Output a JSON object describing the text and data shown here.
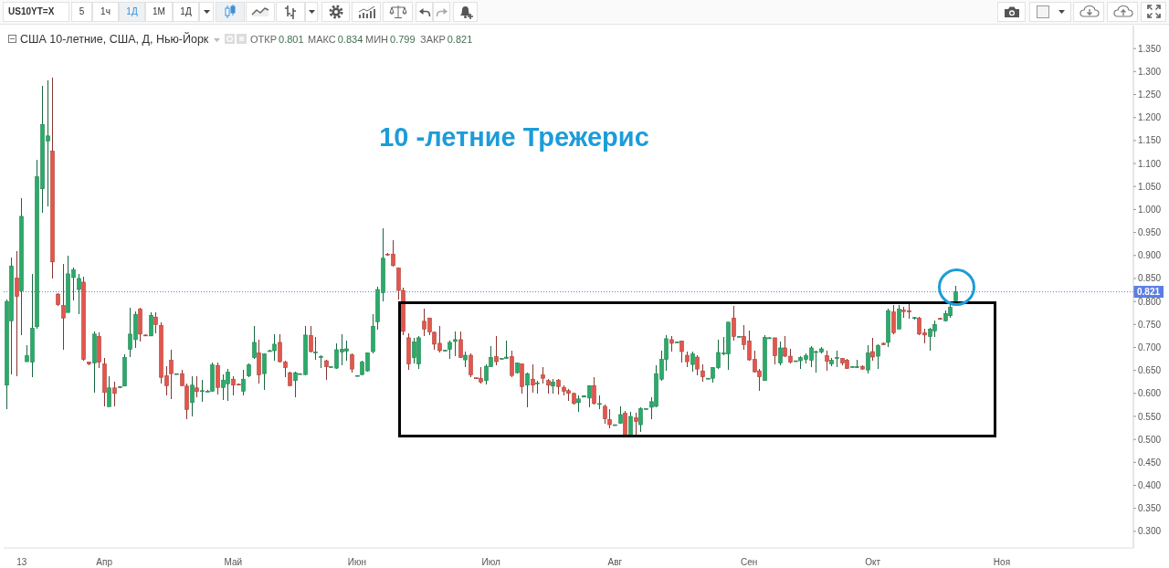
{
  "chart_data": {
    "type": "candlestick",
    "title": "США 10-летние, США, Д, Нью-Йорк",
    "annotations": [
      "US10YT=X",
      "5",
      "1ч",
      "1Д",
      "1М",
      "1Д",
      "ОТКР 0.801",
      "МАКС 0.834",
      "МИН 0.799",
      "ЗАКР 0.821",
      "10 -летние Трежерис"
    ],
    "categories": [
      null,
      null,
      null,
      "13",
      null,
      null,
      null,
      null,
      null,
      null,
      null,
      null,
      null,
      null,
      null,
      null,
      null,
      null,
      null,
      "Апр",
      null,
      null,
      null,
      null,
      null,
      null,
      null,
      null,
      null,
      null,
      null,
      null,
      null,
      null,
      null,
      null,
      null,
      null,
      null,
      null,
      null,
      null,
      null,
      null,
      "Май",
      null,
      null,
      null,
      null,
      null,
      null,
      null,
      null,
      null,
      null,
      null,
      null,
      null,
      null,
      null,
      null,
      null,
      null,
      null,
      null,
      null,
      null,
      null,
      "Июн",
      null,
      null,
      null,
      null,
      null,
      null,
      null,
      null,
      null,
      null,
      null,
      null,
      null,
      null,
      null,
      null,
      null,
      null,
      null,
      null,
      null,
      null,
      null,
      null,
      null,
      "Июл",
      null,
      null,
      null,
      null,
      null,
      null,
      null,
      null,
      null,
      null,
      null,
      null,
      null,
      null,
      null,
      null,
      null,
      null,
      null,
      null,
      null,
      null,
      null,
      "Авг",
      null,
      null,
      null,
      null,
      null,
      null,
      null,
      null,
      null,
      null,
      null,
      null,
      null,
      null,
      null,
      null,
      null,
      null,
      null,
      null,
      null,
      null,
      null,
      null,
      null,
      "Сен",
      null,
      null,
      null,
      null,
      null,
      null,
      null,
      null,
      null,
      null,
      null,
      null,
      null,
      null,
      null,
      null,
      null,
      null,
      null,
      null,
      null,
      null,
      null,
      "Окт",
      null,
      null,
      null,
      null,
      null,
      null,
      null,
      null,
      null,
      null,
      null,
      null,
      null,
      null,
      null,
      null,
      null,
      null,
      null,
      null,
      null,
      null,
      null,
      null,
      "Ноя",
      null,
      null,
      null,
      null,
      null,
      null,
      null,
      null,
      null,
      null,
      null,
      null,
      null,
      null,
      null,
      null,
      null,
      null,
      null,
      null,
      null,
      null,
      null,
      null,
      null
    ],
    "ohlc": [
      [
        0.618,
        0.804,
        0.565,
        0.8
      ],
      [
        0.758,
        0.896,
        0.641,
        0.877
      ],
      [
        0.851,
        0.91,
        0.638,
        0.811
      ],
      [
        0.823,
        1.025,
        0.727,
        0.985
      ],
      [
        0.669,
        0.704,
        0.669,
        0.682
      ],
      [
        0.668,
        0.86,
        0.635,
        0.742
      ],
      [
        0.745,
        1.108,
        0.74,
        1.071
      ],
      [
        1.045,
        1.268,
        0.992,
        1.185
      ],
      [
        1.149,
        1.28,
        1.006,
        1.16
      ],
      [
        1.127,
        1.286,
        0.85,
        0.886
      ],
      [
        0.816,
        0.818,
        0.791,
        0.793
      ],
      [
        0.791,
        0.881,
        0.694,
        0.764
      ],
      [
        0.776,
        0.899,
        0.776,
        0.86
      ],
      [
        0.852,
        0.873,
        0.803,
        0.869
      ],
      [
        0.826,
        0.86,
        0.772,
        0.85
      ],
      [
        0.842,
        0.853,
        0.671,
        0.674
      ],
      [
        0.668,
        0.67,
        0.662,
        0.664
      ],
      [
        0.666,
        0.734,
        0.602,
        0.729
      ],
      [
        0.724,
        0.732,
        0.655,
        0.668
      ],
      [
        0.664,
        0.678,
        0.572,
        0.602
      ],
      [
        0.571,
        0.638,
        0.571,
        0.612
      ],
      [
        0.612,
        0.625,
        0.571,
        0.6
      ],
      [
        0.613,
        0.616,
        0.612,
        0.615
      ],
      [
        0.616,
        0.686,
        0.616,
        0.678
      ],
      [
        0.696,
        0.787,
        0.679,
        0.729
      ],
      [
        0.717,
        0.779,
        0.698,
        0.772
      ],
      [
        0.783,
        0.787,
        0.713,
        0.729
      ],
      [
        0.727,
        0.728,
        0.724,
        0.725
      ],
      [
        0.725,
        0.777,
        0.724,
        0.77
      ],
      [
        0.766,
        0.777,
        0.731,
        0.75
      ],
      [
        0.748,
        0.754,
        0.621,
        0.635
      ],
      [
        0.638,
        0.659,
        0.595,
        0.617
      ],
      [
        0.672,
        0.694,
        0.588,
        0.643
      ],
      [
        0.643,
        0.644,
        0.642,
        0.643
      ],
      [
        0.643,
        0.651,
        0.615,
        0.617
      ],
      [
        0.616,
        0.621,
        0.545,
        0.565
      ],
      [
        0.58,
        0.638,
        0.549,
        0.618
      ],
      [
        0.612,
        0.638,
        0.592,
        0.604
      ],
      [
        0.606,
        0.63,
        0.582,
        0.606
      ],
      [
        0.605,
        0.607,
        0.603,
        0.605
      ],
      [
        0.605,
        0.668,
        0.603,
        0.662
      ],
      [
        0.661,
        0.668,
        0.598,
        0.613
      ],
      [
        0.613,
        0.641,
        0.585,
        0.629
      ],
      [
        0.621,
        0.654,
        0.583,
        0.646
      ],
      [
        0.631,
        0.638,
        0.596,
        0.618
      ],
      [
        0.62,
        0.621,
        0.618,
        0.619
      ],
      [
        0.605,
        0.651,
        0.596,
        0.631
      ],
      [
        0.638,
        0.666,
        0.636,
        0.662
      ],
      [
        0.678,
        0.746,
        0.676,
        0.711
      ],
      [
        0.688,
        0.717,
        0.621,
        0.64
      ],
      [
        0.643,
        0.688,
        0.608,
        0.686
      ],
      [
        0.692,
        0.694,
        0.691,
        0.693
      ],
      [
        0.693,
        0.729,
        0.671,
        0.707
      ],
      [
        0.711,
        0.729,
        0.668,
        0.669
      ],
      [
        0.668,
        0.671,
        0.636,
        0.656
      ],
      [
        0.645,
        0.648,
        0.616,
        0.617
      ],
      [
        0.628,
        0.648,
        0.592,
        0.645
      ],
      [
        0.643,
        0.644,
        0.642,
        0.643
      ],
      [
        0.641,
        0.746,
        0.64,
        0.727
      ],
      [
        0.726,
        0.747,
        0.689,
        0.691
      ],
      [
        0.69,
        0.722,
        0.674,
        0.69
      ],
      [
        0.68,
        0.684,
        0.656,
        0.68
      ],
      [
        0.671,
        0.674,
        0.629,
        0.658
      ],
      [
        0.658,
        0.659,
        0.657,
        0.658
      ],
      [
        0.655,
        0.709,
        0.654,
        0.695
      ],
      [
        0.69,
        0.729,
        0.662,
        0.696
      ],
      [
        0.692,
        0.715,
        0.671,
        0.697
      ],
      [
        0.684,
        0.688,
        0.645,
        0.653
      ],
      [
        0.639,
        0.64,
        0.638,
        0.639
      ],
      [
        0.641,
        0.671,
        0.64,
        0.668
      ],
      [
        0.649,
        0.69,
        0.648,
        0.688
      ],
      [
        0.691,
        0.773,
        0.688,
        0.746
      ],
      [
        0.756,
        0.832,
        0.739,
        0.826
      ],
      [
        0.819,
        0.96,
        0.8,
        0.894
      ],
      [
        0.903,
        0.905,
        0.899,
        0.901
      ],
      [
        0.903,
        0.934,
        0.876,
        0.878
      ],
      [
        0.873,
        0.873,
        0.805,
        0.824
      ],
      [
        0.824,
        0.83,
        0.727,
        0.735
      ],
      [
        0.721,
        0.731,
        0.651,
        0.664
      ],
      [
        0.678,
        0.721,
        0.666,
        0.712
      ],
      [
        0.664,
        0.724,
        0.654,
        0.721
      ],
      [
        0.757,
        0.785,
        0.724,
        0.74
      ],
      [
        0.764,
        0.764,
        0.727,
        0.734
      ],
      [
        0.733,
        0.734,
        0.694,
        0.707
      ],
      [
        0.709,
        0.747,
        0.689,
        0.693
      ],
      [
        0.694,
        0.695,
        0.693,
        0.694
      ],
      [
        0.696,
        0.714,
        0.676,
        0.711
      ],
      [
        0.713,
        0.735,
        0.681,
        0.717
      ],
      [
        0.717,
        0.734,
        0.678,
        0.678
      ],
      [
        0.673,
        0.691,
        0.658,
        0.683
      ],
      [
        0.683,
        0.688,
        0.635,
        0.64
      ],
      [
        0.634,
        0.634,
        0.632,
        0.632
      ],
      [
        0.633,
        0.658,
        0.621,
        0.625
      ],
      [
        0.628,
        0.664,
        0.62,
        0.659
      ],
      [
        0.658,
        0.702,
        0.658,
        0.678
      ],
      [
        0.68,
        0.724,
        0.661,
        0.669
      ],
      [
        0.676,
        0.677,
        0.675,
        0.676
      ],
      [
        0.676,
        0.714,
        0.676,
        0.679
      ],
      [
        0.68,
        0.692,
        0.635,
        0.639
      ],
      [
        0.645,
        0.668,
        0.643,
        0.666
      ],
      [
        0.664,
        0.666,
        0.6,
        0.615
      ],
      [
        0.618,
        0.645,
        0.57,
        0.643
      ],
      [
        0.631,
        0.664,
        0.602,
        0.618
      ],
      [
        0.623,
        0.628,
        0.6,
        0.623
      ],
      [
        0.64,
        0.658,
        0.621,
        0.633
      ],
      [
        0.628,
        0.631,
        0.6,
        0.618
      ],
      [
        0.616,
        0.631,
        0.6,
        0.625
      ],
      [
        0.629,
        0.631,
        0.598,
        0.615
      ],
      [
        0.613,
        0.618,
        0.595,
        0.605
      ],
      [
        0.606,
        0.61,
        0.583,
        0.6
      ],
      [
        0.6,
        0.602,
        0.575,
        0.578
      ],
      [
        0.58,
        0.596,
        0.559,
        0.588
      ],
      [
        0.592,
        0.596,
        0.591,
        0.595
      ],
      [
        0.59,
        0.618,
        0.57,
        0.617
      ],
      [
        0.617,
        0.636,
        0.576,
        0.578
      ],
      [
        0.578,
        0.595,
        0.565,
        0.578
      ],
      [
        0.572,
        0.575,
        0.535,
        0.545
      ],
      [
        0.543,
        0.565,
        0.524,
        0.532
      ],
      [
        0.532,
        0.533,
        0.531,
        0.532
      ],
      [
        0.535,
        0.572,
        0.534,
        0.554
      ],
      [
        0.557,
        0.562,
        0.509,
        0.51
      ],
      [
        0.509,
        0.559,
        0.506,
        0.55
      ],
      [
        0.547,
        0.557,
        0.509,
        0.539
      ],
      [
        0.532,
        0.569,
        0.516,
        0.567
      ],
      [
        0.567,
        0.568,
        0.566,
        0.567
      ],
      [
        0.57,
        0.592,
        0.545,
        0.582
      ],
      [
        0.572,
        0.661,
        0.57,
        0.643
      ],
      [
        0.631,
        0.692,
        0.628,
        0.674
      ],
      [
        0.674,
        0.727,
        0.649,
        0.719
      ],
      [
        0.717,
        0.724,
        0.691,
        0.709
      ],
      [
        0.712,
        0.713,
        0.711,
        0.712
      ],
      [
        0.714,
        0.715,
        0.668,
        0.691
      ],
      [
        0.683,
        0.691,
        0.658,
        0.669
      ],
      [
        0.663,
        0.691,
        0.647,
        0.686
      ],
      [
        0.679,
        0.684,
        0.64,
        0.653
      ],
      [
        0.649,
        0.664,
        0.625,
        0.636
      ],
      [
        0.633,
        0.634,
        0.632,
        0.633
      ],
      [
        0.633,
        0.658,
        0.623,
        0.656
      ],
      [
        0.656,
        0.717,
        0.654,
        0.689
      ],
      [
        0.688,
        0.722,
        0.684,
        0.688
      ],
      [
        0.686,
        0.755,
        0.651,
        0.755
      ],
      [
        0.764,
        0.79,
        0.715,
        0.724
      ],
      [
        0.724,
        0.725,
        0.723,
        0.724
      ],
      [
        0.724,
        0.748,
        0.694,
        0.706
      ],
      [
        0.714,
        0.737,
        0.671,
        0.673
      ],
      [
        0.674,
        0.692,
        0.645,
        0.647
      ],
      [
        0.649,
        0.654,
        0.605,
        0.636
      ],
      [
        0.628,
        0.727,
        0.627,
        0.722
      ],
      [
        0.721,
        0.722,
        0.72,
        0.721
      ],
      [
        0.721,
        0.721,
        0.664,
        0.682
      ],
      [
        0.666,
        0.713,
        0.662,
        0.699
      ],
      [
        0.699,
        0.724,
        0.68,
        0.681
      ],
      [
        0.681,
        0.697,
        0.666,
        0.668
      ],
      [
        0.671,
        0.672,
        0.67,
        0.671
      ],
      [
        0.671,
        0.681,
        0.653,
        0.678
      ],
      [
        0.674,
        0.688,
        0.666,
        0.682
      ],
      [
        0.672,
        0.702,
        0.658,
        0.699
      ],
      [
        0.691,
        0.692,
        0.646,
        0.691
      ],
      [
        0.69,
        0.701,
        0.688,
        0.697
      ],
      [
        0.682,
        0.692,
        0.65,
        0.67
      ],
      [
        0.664,
        0.677,
        0.659,
        0.672
      ],
      [
        0.678,
        0.693,
        0.658,
        0.678
      ],
      [
        0.676,
        0.678,
        0.661,
        0.666
      ],
      [
        0.672,
        0.676,
        0.653,
        0.654
      ],
      [
        0.658,
        0.659,
        0.657,
        0.658
      ],
      [
        0.658,
        0.674,
        0.656,
        0.658
      ],
      [
        0.659,
        0.661,
        0.651,
        0.653
      ],
      [
        0.651,
        0.704,
        0.643,
        0.688
      ],
      [
        0.691,
        0.721,
        0.671,
        0.679
      ],
      [
        0.681,
        0.707,
        0.654,
        0.704
      ],
      [
        0.709,
        0.71,
        0.705,
        0.706
      ],
      [
        0.711,
        0.785,
        0.701,
        0.78
      ],
      [
        0.777,
        0.793,
        0.729,
        0.732
      ],
      [
        0.74,
        0.793,
        0.74,
        0.783
      ],
      [
        0.781,
        0.789,
        0.764,
        0.778
      ],
      [
        0.78,
        0.8,
        0.762,
        0.777
      ],
      [
        0.765,
        0.767,
        0.76,
        0.765
      ],
      [
        0.764,
        0.767,
        0.727,
        0.729
      ],
      [
        0.732,
        0.74,
        0.709,
        0.727
      ],
      [
        0.724,
        0.742,
        0.692,
        0.74
      ],
      [
        0.736,
        0.758,
        0.723,
        0.75
      ],
      [
        0.763,
        0.764,
        0.761,
        0.762
      ],
      [
        0.758,
        0.78,
        0.756,
        0.774
      ],
      [
        0.769,
        0.797,
        0.765,
        0.787
      ],
      [
        0.801,
        0.834,
        0.799,
        0.821
      ],
      null,
      null,
      null,
      null,
      null,
      null,
      null,
      null,
      null,
      null,
      null,
      null,
      null,
      null,
      null,
      null,
      null,
      null,
      null,
      null,
      null,
      null,
      null,
      null,
      null,
      null,
      null,
      null,
      null,
      null,
      null,
      null,
      null,
      null
    ],
    "colors": [
      "#2aab69",
      "#2aab69",
      "#e4564c",
      "#2aab69",
      "#2aab69",
      "#2aab69",
      "#2aab69",
      "#2aab69",
      "#2aab69",
      "#e4564c",
      "#e4564c",
      "#e4564c",
      "#2aab69",
      "#2aab69",
      "#2aab69",
      "#e4564c",
      "#e4564c",
      "#2aab69",
      "#e4564c",
      "#e4564c",
      "#2aab69",
      "#e4564c",
      "#2aab69",
      "#2aab69",
      "#2aab69",
      "#2aab69",
      "#e4564c",
      "#e4564c",
      "#2aab69",
      "#e4564c",
      "#e4564c",
      "#e4564c",
      "#e4564c",
      "#2aab69",
      "#e4564c",
      "#e4564c",
      "#2aab69",
      "#e4564c",
      "#2aab69",
      "#2aab69",
      "#2aab69",
      "#e4564c",
      "#2aab69",
      "#2aab69",
      "#e4564c",
      "#e4564c",
      "#2aab69",
      "#2aab69",
      "#2aab69",
      "#e4564c",
      "#2aab69",
      "#2aab69",
      "#2aab69",
      "#e4564c",
      "#e4564c",
      "#e4564c",
      "#2aab69",
      "#2aab69",
      "#2aab69",
      "#e4564c",
      "#2aab69",
      "#2aab69",
      "#e4564c",
      "#2aab69",
      "#2aab69",
      "#2aab69",
      "#2aab69",
      "#e4564c",
      "#2aab69",
      "#2aab69",
      "#2aab69",
      "#2aab69",
      "#2aab69",
      "#2aab69",
      "#e4564c",
      "#e4564c",
      "#e4564c",
      "#e4564c",
      "#e4564c",
      "#2aab69",
      "#2aab69",
      "#e4564c",
      "#e4564c",
      "#e4564c",
      "#e4564c",
      "#2aab69",
      "#2aab69",
      "#2aab69",
      "#e4564c",
      "#2aab69",
      "#e4564c",
      "#e4564c",
      "#e4564c",
      "#2aab69",
      "#2aab69",
      "#e4564c",
      "#2aab69",
      "#2aab69",
      "#e4564c",
      "#2aab69",
      "#e4564c",
      "#2aab69",
      "#e4564c",
      "#2aab69",
      "#e4564c",
      "#e4564c",
      "#2aab69",
      "#e4564c",
      "#e4564c",
      "#e4564c",
      "#e4564c",
      "#2aab69",
      "#2aab69",
      "#2aab69",
      "#e4564c",
      "#2aab69",
      "#e4564c",
      "#e4564c",
      "#2aab69",
      "#2aab69",
      "#e4564c",
      "#2aab69",
      "#e4564c",
      "#2aab69",
      "#2aab69",
      "#2aab69",
      "#2aab69",
      "#2aab69",
      "#2aab69",
      "#e4564c",
      "#2aab69",
      "#e4564c",
      "#e4564c",
      "#2aab69",
      "#e4564c",
      "#e4564c",
      "#2aab69",
      "#2aab69",
      "#2aab69",
      "#2aab69",
      "#2aab69",
      "#e4564c",
      "#2aab69",
      "#e4564c",
      "#e4564c",
      "#e4564c",
      "#e4564c",
      "#2aab69",
      "#2aab69",
      "#e4564c",
      "#2aab69",
      "#e4564c",
      "#e4564c",
      "#2aab69",
      "#2aab69",
      "#2aab69",
      "#2aab69",
      "#2aab69",
      "#2aab69",
      "#e4564c",
      "#2aab69",
      "#2aab69",
      "#e4564c",
      "#e4564c",
      "#2aab69",
      "#2aab69",
      "#e4564c",
      "#2aab69",
      "#e4564c",
      "#2aab69",
      "#e4564c",
      "#2aab69",
      "#e4564c",
      "#2aab69",
      "#e4564c",
      "#e4564c",
      "#2aab69",
      "#e4564c",
      "#e4564c",
      "#2aab69",
      "#2aab69",
      "#e4564c",
      "#2aab69",
      "#2aab69",
      "#2aab69",
      null,
      null,
      null,
      null,
      null,
      null,
      null,
      null,
      null,
      null,
      null,
      null,
      null,
      null,
      null,
      null,
      null,
      null,
      null,
      null,
      null,
      null,
      null,
      null,
      null,
      null,
      null,
      null,
      null,
      null,
      null,
      null,
      null,
      null
    ],
    "ylim": [
      0.264,
      1.4
    ],
    "yticks": [
      {
        "value": 0.3,
        "label": "0.300"
      },
      {
        "value": 0.35,
        "label": "0.350"
      },
      {
        "value": 0.4,
        "label": "0.400"
      },
      {
        "value": 0.45,
        "label": "0.450"
      },
      {
        "value": 0.5,
        "label": "0.500"
      },
      {
        "value": 0.55,
        "label": "0.550"
      },
      {
        "value": 0.6,
        "label": "0.600"
      },
      {
        "value": 0.65,
        "label": "0.650"
      },
      {
        "value": 0.7,
        "label": "0.700"
      },
      {
        "value": 0.75,
        "label": "0.750"
      },
      {
        "value": 0.8,
        "label": "0.800"
      },
      {
        "value": 0.85,
        "label": "0.850"
      },
      {
        "value": 0.9,
        "label": "0.900"
      },
      {
        "value": 0.95,
        "label": "0.950"
      },
      {
        "value": 1.0,
        "label": "1.000"
      },
      {
        "value": 1.05,
        "label": "1.050"
      },
      {
        "value": 1.1,
        "label": "1.100"
      },
      {
        "value": 1.15,
        "label": "1.150"
      },
      {
        "value": 1.2,
        "label": "1.200"
      },
      {
        "value": 1.25,
        "label": "1.250"
      },
      {
        "value": 1.3,
        "label": "1.300"
      },
      {
        "value": 1.35,
        "label": "1.350"
      }
    ],
    "ref_lines": [
      {
        "axis": "y",
        "value": 0.821,
        "label": "0.821",
        "color": "#5b7ee5",
        "line_style": "dotted"
      }
    ]
  }
}
